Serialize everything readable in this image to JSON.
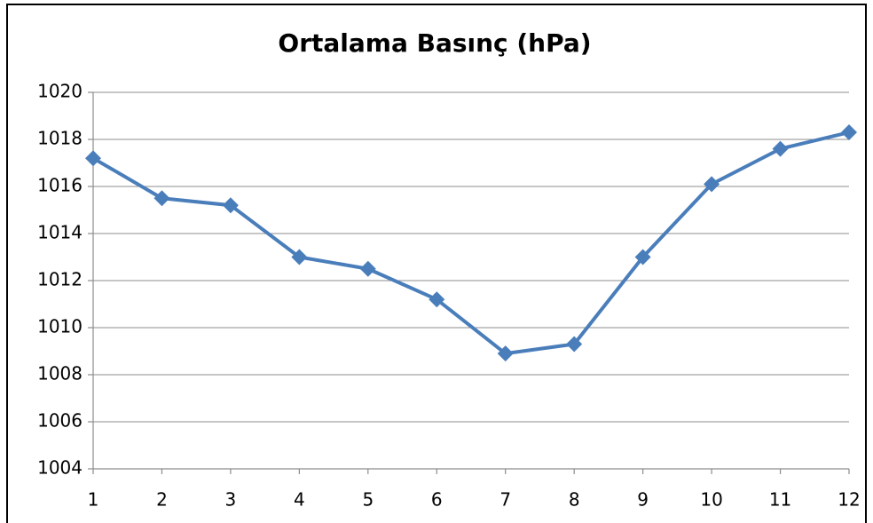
{
  "chart_data": {
    "type": "line",
    "title": "Ortalama Basınç (hPa)",
    "x": [
      1,
      2,
      3,
      4,
      5,
      6,
      7,
      8,
      9,
      10,
      11,
      12
    ],
    "xlim": [
      1,
      12
    ],
    "xticks": [
      1,
      2,
      3,
      4,
      5,
      6,
      7,
      8,
      9,
      10,
      11,
      12
    ],
    "series": [
      {
        "color": "#4a7ebb",
        "values": [
          1017.2,
          1015.5,
          1015.2,
          1013.0,
          1012.5,
          1011.2,
          1008.9,
          1009.3,
          1013.0,
          1016.1,
          1017.6,
          1018.3
        ]
      }
    ],
    "ylim": [
      1004,
      1020
    ],
    "yticks": [
      1004,
      1006,
      1008,
      1010,
      1012,
      1014,
      1016,
      1018,
      1020
    ],
    "grid": true
  }
}
